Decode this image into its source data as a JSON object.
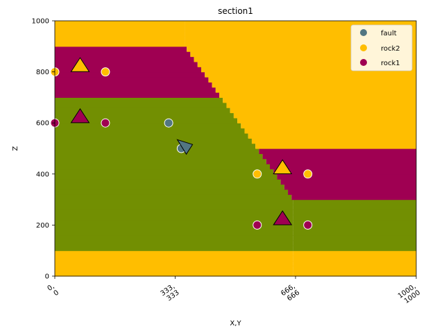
{
  "chart_data": {
    "type": "scatter",
    "title": "section1",
    "xlabel": "X,Y",
    "ylabel": "Z",
    "xlim": [
      0,
      1000
    ],
    "ylim": [
      0,
      1000
    ],
    "grid": false,
    "legend_position": "top-right",
    "x_ticks": [
      {
        "value": 0,
        "line1": "0,",
        "line2": "0"
      },
      {
        "value": 333,
        "line1": "333,",
        "line2": "333"
      },
      {
        "value": 666,
        "line1": "666,",
        "line2": "666"
      },
      {
        "value": 1000,
        "line1": "1000,",
        "line2": "1000"
      }
    ],
    "y_ticks": [
      0,
      200,
      400,
      600,
      800,
      1000
    ],
    "background_units": {
      "colors": {
        "fault": "#527682",
        "rock2": "#ffbe00",
        "rock1": "#9f0052",
        "basement": "#728f02"
      },
      "fault_trace": [
        [
          360,
          900
        ],
        [
          560,
          500
        ],
        [
          660,
          300
        ]
      ]
    },
    "series": [
      {
        "name": "fault",
        "color": "#527682",
        "points": [
          [
            315,
            600
          ],
          [
            350,
            500
          ]
        ],
        "orientations": [
          [
            360,
            510,
            "down-right"
          ]
        ]
      },
      {
        "name": "rock2",
        "color": "#ffbe00",
        "points": [
          [
            0,
            800
          ],
          [
            140,
            800
          ],
          [
            560,
            400
          ],
          [
            700,
            400
          ]
        ],
        "orientations": [
          [
            70,
            820,
            "up"
          ],
          [
            630,
            420,
            "up"
          ]
        ]
      },
      {
        "name": "rock1",
        "color": "#9f0052",
        "points": [
          [
            0,
            600
          ],
          [
            140,
            600
          ],
          [
            560,
            200
          ],
          [
            700,
            200
          ]
        ],
        "orientations": [
          [
            70,
            620,
            "up"
          ],
          [
            630,
            220,
            "up"
          ]
        ]
      }
    ]
  }
}
